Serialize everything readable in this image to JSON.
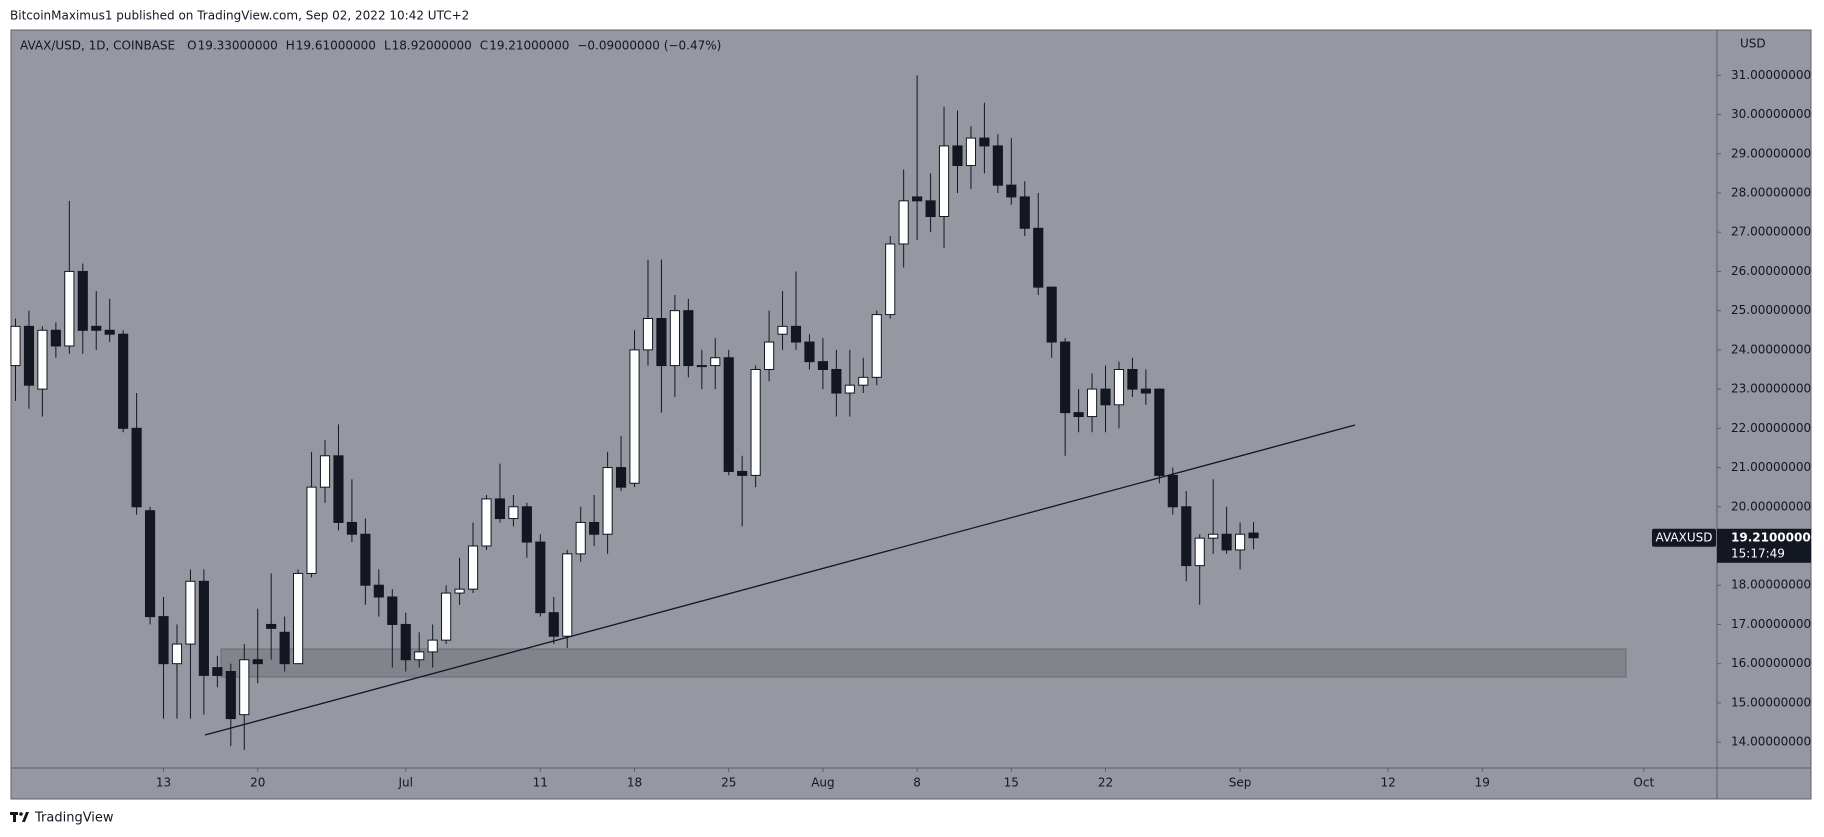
{
  "publisher": "BitcoinMaximus1 published on TradingView.com, Sep 02, 2022 10:42 UTC+2",
  "footer": "TradingView",
  "chart_data": {
    "type": "candlestick",
    "title": "AVAX/USD, 1D, COINBASE",
    "legend": [
      {
        "key": "O",
        "text": "19.33000000"
      },
      {
        "key": "H",
        "text": "19.61000000"
      },
      {
        "key": "L",
        "text": "18.92000000"
      },
      {
        "key": "C",
        "text": "19.21000000"
      }
    ],
    "change": "−0.09000000 (−0.47%)",
    "y_label": "USD",
    "categories": [
      null,
      null,
      null,
      null,
      null,
      null,
      null,
      null,
      null,
      null,
      null,
      "13",
      null,
      null,
      null,
      null,
      null,
      null,
      "20",
      null,
      null,
      null,
      null,
      null,
      null,
      null,
      null,
      null,
      null,
      "Jul",
      null,
      null,
      null,
      null,
      null,
      null,
      null,
      null,
      null,
      "11",
      null,
      null,
      null,
      null,
      null,
      null,
      "18",
      null,
      null,
      null,
      null,
      null,
      null,
      "25",
      null,
      null,
      null,
      null,
      null,
      null,
      "Aug",
      null,
      null,
      null,
      null,
      null,
      null,
      "8",
      null,
      null,
      null,
      null,
      null,
      null,
      "15",
      null,
      null,
      null,
      null,
      null,
      null,
      "22",
      null,
      null,
      null,
      null,
      null,
      null,
      null,
      null,
      null,
      "Sep",
      null,
      null,
      null,
      null,
      null,
      null,
      null,
      null,
      null,
      null,
      "12",
      null,
      null,
      null,
      null,
      null,
      null,
      "19",
      null,
      null,
      null,
      null,
      null,
      null,
      null,
      null,
      null,
      null,
      null,
      "Oct"
    ],
    "open": [
      23.6,
      24.6,
      23.0,
      24.5,
      24.1,
      26.0,
      24.6,
      24.5,
      24.4,
      22.0,
      19.9,
      17.2,
      16.0,
      16.5,
      18.1,
      15.9,
      15.8,
      14.7,
      16.1,
      17.0,
      16.8,
      16.0,
      18.3,
      20.5,
      21.3,
      19.6,
      19.3,
      18.0,
      17.7,
      17.0,
      16.1,
      16.3,
      16.6,
      17.8,
      17.9,
      19.0,
      20.2,
      19.7,
      20.0,
      19.1,
      17.3,
      16.7,
      18.8,
      19.6,
      19.3,
      21.0,
      20.6,
      24.0,
      24.8,
      23.6,
      25.0,
      23.6,
      23.6,
      23.8,
      20.9,
      20.8,
      23.5,
      24.4,
      24.6,
      24.2,
      23.7,
      23.5,
      22.9,
      23.1,
      23.3,
      24.9,
      26.7,
      27.9,
      27.8,
      27.4,
      29.2,
      28.7,
      29.4,
      29.2,
      28.2,
      27.9,
      27.1,
      25.6,
      24.2,
      22.4,
      22.3,
      23.0,
      22.6,
      23.5,
      23.0,
      23.0,
      20.8,
      20.0,
      18.5,
      19.2,
      19.3,
      18.9,
      19.33,
      null,
      null,
      null,
      null,
      null,
      null,
      null,
      null,
      null,
      null,
      null,
      null,
      null,
      null,
      null,
      null,
      null,
      null,
      null,
      null,
      null,
      null,
      null,
      null,
      null,
      null,
      null,
      null,
      null
    ],
    "high": [
      24.8,
      25.0,
      24.6,
      24.7,
      27.8,
      26.2,
      25.5,
      25.3,
      24.5,
      22.9,
      20.0,
      17.7,
      17.0,
      18.4,
      18.4,
      16.2,
      16.0,
      16.5,
      17.4,
      18.3,
      17.2,
      18.4,
      21.4,
      21.7,
      22.1,
      20.7,
      19.7,
      18.4,
      17.9,
      17.3,
      16.8,
      17.0,
      18.0,
      18.7,
      19.6,
      20.3,
      21.1,
      20.3,
      20.1,
      19.3,
      17.7,
      18.9,
      20.0,
      20.3,
      21.4,
      21.8,
      24.5,
      26.3,
      26.3,
      25.4,
      25.3,
      24.0,
      24.3,
      24.0,
      21.3,
      23.6,
      25.0,
      25.5,
      26.0,
      24.4,
      24.3,
      24.0,
      24.0,
      23.8,
      25.0,
      26.9,
      28.6,
      31.0,
      28.5,
      30.2,
      30.1,
      29.7,
      30.3,
      29.5,
      29.4,
      28.3,
      28.0,
      25.6,
      24.3,
      23.0,
      23.4,
      23.6,
      23.7,
      23.8,
      23.5,
      23.0,
      21.0,
      20.4,
      19.3,
      20.7,
      20.0,
      19.6,
      19.61,
      null,
      null,
      null,
      null,
      null,
      null,
      null,
      null,
      null,
      null,
      null,
      null,
      null,
      null,
      null,
      null,
      null,
      null,
      null,
      null,
      null,
      null,
      null,
      null,
      null,
      null,
      null,
      null,
      null
    ],
    "low": [
      22.7,
      22.5,
      22.3,
      23.8,
      23.9,
      23.9,
      24.0,
      24.2,
      21.9,
      19.8,
      17.0,
      14.6,
      14.6,
      14.6,
      14.7,
      15.4,
      13.9,
      13.8,
      15.5,
      16.1,
      15.8,
      16.0,
      18.2,
      20.1,
      19.4,
      19.1,
      17.5,
      17.2,
      15.9,
      15.8,
      15.9,
      15.9,
      16.5,
      17.5,
      17.8,
      18.9,
      19.6,
      19.5,
      18.7,
      17.2,
      16.5,
      16.4,
      18.6,
      19.0,
      18.8,
      20.4,
      20.5,
      23.6,
      22.4,
      22.8,
      23.3,
      23.0,
      23.0,
      20.8,
      19.5,
      20.5,
      23.2,
      24.0,
      24.0,
      23.5,
      23.0,
      22.3,
      22.3,
      22.9,
      23.1,
      24.8,
      26.1,
      26.8,
      27.0,
      26.6,
      28.0,
      28.1,
      28.5,
      28.0,
      27.7,
      26.9,
      25.4,
      23.8,
      21.3,
      21.9,
      21.9,
      21.9,
      22.0,
      22.8,
      22.6,
      20.6,
      19.8,
      18.1,
      17.5,
      18.8,
      18.8,
      18.4,
      18.92,
      null,
      null,
      null,
      null,
      null,
      null,
      null,
      null,
      null,
      null,
      null,
      null,
      null,
      null,
      null,
      null,
      null,
      null,
      null,
      null,
      null,
      null,
      null,
      null,
      null,
      null,
      null,
      null,
      null
    ],
    "close": [
      24.6,
      23.1,
      24.5,
      24.1,
      26.0,
      24.5,
      24.5,
      24.4,
      22.0,
      20.0,
      17.2,
      16.0,
      16.5,
      18.1,
      15.7,
      15.7,
      14.6,
      16.1,
      16.0,
      16.9,
      16.0,
      18.3,
      20.5,
      21.3,
      19.6,
      19.3,
      18.0,
      17.7,
      17.0,
      16.1,
      16.3,
      16.6,
      17.8,
      17.9,
      19.0,
      20.2,
      19.7,
      20.0,
      19.1,
      17.3,
      16.7,
      18.8,
      19.6,
      19.3,
      21.0,
      20.5,
      24.0,
      24.8,
      23.6,
      25.0,
      23.6,
      23.6,
      23.8,
      20.9,
      20.8,
      23.5,
      24.2,
      24.6,
      24.2,
      23.7,
      23.5,
      22.9,
      23.1,
      23.3,
      24.9,
      26.7,
      27.8,
      27.8,
      27.4,
      29.2,
      28.7,
      29.4,
      29.2,
      28.2,
      27.9,
      27.1,
      25.6,
      24.2,
      22.4,
      22.3,
      23.0,
      22.6,
      23.5,
      23.0,
      22.9,
      20.8,
      20.0,
      18.5,
      19.2,
      19.3,
      18.9,
      19.3,
      19.21,
      null,
      null,
      null,
      null,
      null,
      null,
      null,
      null,
      null,
      null,
      null,
      null,
      null,
      null,
      null,
      null,
      null,
      null,
      null,
      null,
      null,
      null,
      null,
      null,
      null,
      null,
      null,
      null,
      null
    ],
    "up_color": "#ffffff",
    "down_color": "#131722",
    "ylim": [
      13.34,
      32.13
    ],
    "yticks": [
      {
        "value": 14,
        "label": "14.00000000"
      },
      {
        "value": 15,
        "label": "15.00000000"
      },
      {
        "value": 16,
        "label": "16.00000000"
      },
      {
        "value": 17,
        "label": "17.00000000"
      },
      {
        "value": 18,
        "label": "18.00000000"
      },
      {
        "value": 19,
        "label": "19.00000000"
      },
      {
        "value": 20,
        "label": "20.00000000"
      },
      {
        "value": 21,
        "label": "21.00000000"
      },
      {
        "value": 22,
        "label": "22.00000000"
      },
      {
        "value": 23,
        "label": "23.00000000"
      },
      {
        "value": 24,
        "label": "24.00000000"
      },
      {
        "value": 25,
        "label": "25.00000000"
      },
      {
        "value": 26,
        "label": "26.00000000"
      },
      {
        "value": 27,
        "label": "27.00000000"
      },
      {
        "value": 28,
        "label": "28.00000000"
      },
      {
        "value": 29,
        "label": "29.00000000"
      },
      {
        "value": 30,
        "label": "30.00000000"
      },
      {
        "value": 31,
        "label": "31.00000000"
      }
    ],
    "grid": false,
    "price_tag": {
      "symbol": "AVAXUSD",
      "value": 19.21,
      "label": "19.21000000",
      "countdown": "15:17:49"
    }
  }
}
